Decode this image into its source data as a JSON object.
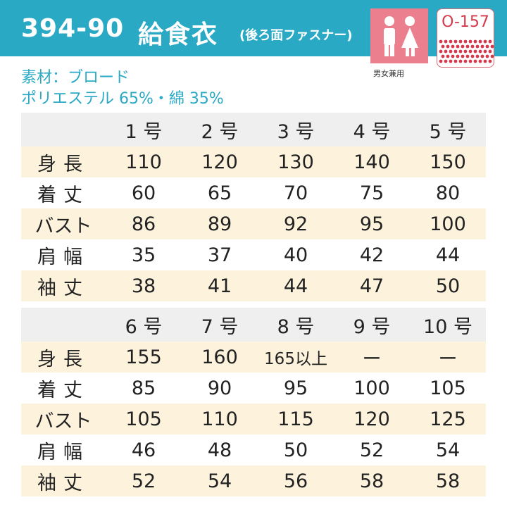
{
  "header": {
    "code": "394-90",
    "name": "給食衣",
    "note": "(後ろ面ファスナー)",
    "unisex_label": "男女兼用",
    "badge": "O-157"
  },
  "material": {
    "fabric": "素材：ブロード",
    "composition": "ポリエステル 65%・綿 35%"
  },
  "tables": [
    {
      "columns": [
        "1 号",
        "2 号",
        "3 号",
        "4 号",
        "5 号"
      ],
      "rows": [
        {
          "label": "身長",
          "values": [
            110,
            120,
            130,
            140,
            150
          ]
        },
        {
          "label": "着丈",
          "values": [
            60,
            65,
            70,
            75,
            80
          ]
        },
        {
          "label": "バスト",
          "values": [
            86,
            89,
            92,
            95,
            100
          ]
        },
        {
          "label": "肩幅",
          "values": [
            35,
            37,
            40,
            42,
            44
          ]
        },
        {
          "label": "袖丈",
          "values": [
            38,
            41,
            44,
            47,
            50
          ]
        }
      ]
    },
    {
      "columns": [
        "6 号",
        "7 号",
        "8 号",
        "9 号",
        "10 号"
      ],
      "rows": [
        {
          "label": "身長",
          "values": [
            155,
            160,
            "165以上",
            "ー",
            "ー"
          ]
        },
        {
          "label": "着丈",
          "values": [
            85,
            90,
            95,
            100,
            105
          ]
        },
        {
          "label": "バスト",
          "values": [
            105,
            110,
            115,
            120,
            125
          ]
        },
        {
          "label": "肩幅",
          "values": [
            46,
            48,
            50,
            52,
            54
          ]
        },
        {
          "label": "袖丈",
          "values": [
            52,
            54,
            56,
            58,
            58
          ]
        }
      ]
    }
  ]
}
